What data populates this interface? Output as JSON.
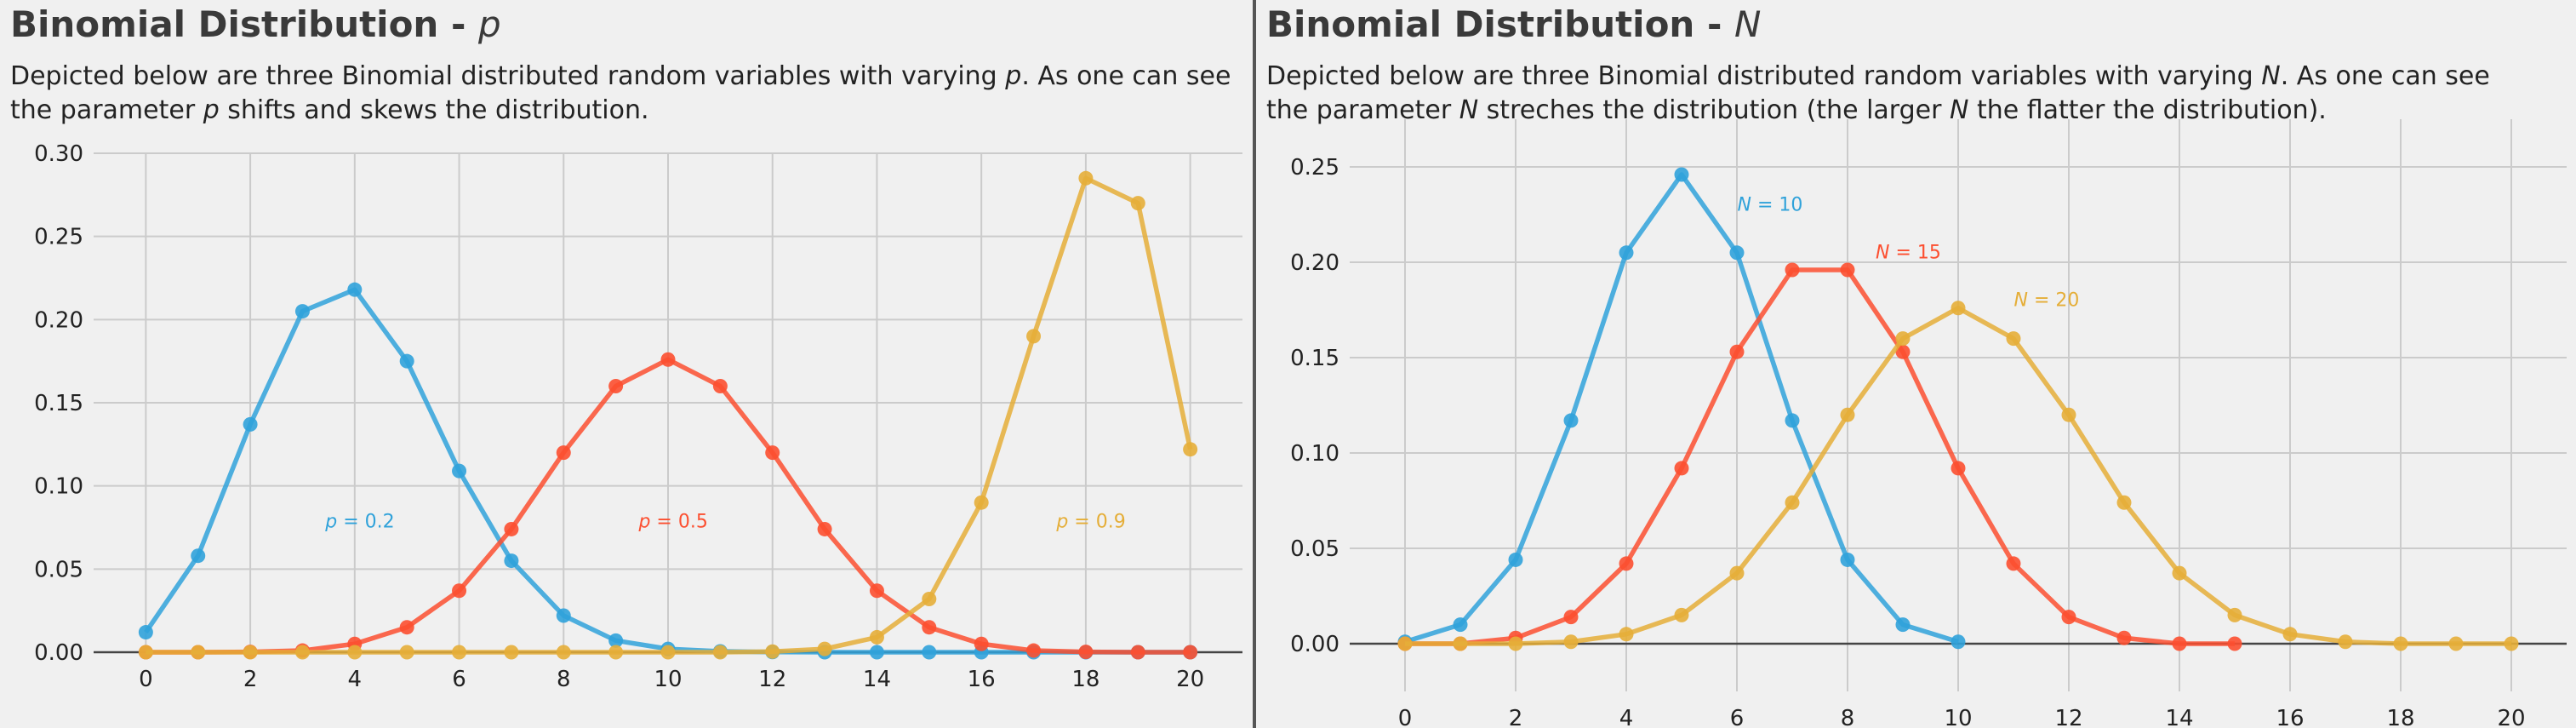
{
  "left": {
    "title_main": "Binomial Distribution - ",
    "title_var": "p",
    "desc": [
      [
        "Depicted below are three Binomial distributed random variables with varying ",
        false
      ],
      [
        "p",
        true
      ],
      [
        ". As one can see",
        false
      ],
      [
        "\nthe parameter ",
        false
      ],
      [
        "p",
        true
      ],
      [
        " shifts and skews the distribution.",
        false
      ]
    ]
  },
  "right": {
    "title_main": "Binomial Distribution - ",
    "title_var": "N",
    "desc": [
      [
        "Depicted below are three Binomial distributed random variables with varying ",
        false
      ],
      [
        "N",
        true
      ],
      [
        ". As one can see",
        false
      ],
      [
        "\nthe parameter ",
        false
      ],
      [
        "N",
        true
      ],
      [
        " streches the distribution (the larger ",
        false
      ],
      [
        "N",
        true
      ],
      [
        " the flatter the distribution).",
        false
      ]
    ]
  },
  "chart_data": [
    {
      "type": "line",
      "xlim": [
        -1,
        21
      ],
      "ylim": [
        0,
        0.3
      ],
      "xticks": [
        0,
        2,
        4,
        6,
        8,
        10,
        12,
        14,
        16,
        18,
        20
      ],
      "yticks": [
        0.0,
        0.05,
        0.1,
        0.15,
        0.2,
        0.25,
        0.3
      ],
      "ytick_labels": [
        "0.00",
        "0.05",
        "0.10",
        "0.15",
        "0.20",
        "0.25",
        "0.30"
      ],
      "grid": true,
      "series": [
        {
          "name": "p = 0.2",
          "color": "#30a2da",
          "x": [
            0,
            1,
            2,
            3,
            4,
            5,
            6,
            7,
            8,
            9,
            10,
            11,
            12,
            13,
            14,
            15,
            16,
            17,
            18,
            19,
            20
          ],
          "values": [
            0.012,
            0.058,
            0.137,
            0.205,
            0.218,
            0.175,
            0.109,
            0.055,
            0.022,
            0.007,
            0.002,
            0.0005,
            0.0001,
            0,
            0,
            0,
            0,
            0,
            0,
            0,
            0
          ],
          "label": {
            "prefix": "p",
            "text": " = 0.2",
            "x": 4.1,
            "y": 0.075
          }
        },
        {
          "name": "p = 0.5",
          "color": "#fc4f30",
          "x": [
            0,
            1,
            2,
            3,
            4,
            5,
            6,
            7,
            8,
            9,
            10,
            11,
            12,
            13,
            14,
            15,
            16,
            17,
            18,
            19,
            20
          ],
          "values": [
            0,
            0,
            0.0002,
            0.001,
            0.005,
            0.015,
            0.037,
            0.074,
            0.12,
            0.16,
            0.176,
            0.16,
            0.12,
            0.074,
            0.037,
            0.015,
            0.005,
            0.001,
            0.0002,
            0,
            0
          ],
          "label": {
            "prefix": "p",
            "text": " = 0.5",
            "x": 10.1,
            "y": 0.075
          }
        },
        {
          "name": "p = 0.9",
          "color": "#e5ae38",
          "x": [
            0,
            1,
            2,
            3,
            4,
            5,
            6,
            7,
            8,
            9,
            10,
            11,
            12,
            13,
            14,
            15,
            16,
            17,
            18,
            19,
            20
          ],
          "values": [
            0,
            0,
            0,
            0,
            0,
            0,
            0,
            0,
            0,
            0,
            0,
            0,
            0.0004,
            0.002,
            0.009,
            0.032,
            0.09,
            0.19,
            0.285,
            0.27,
            0.122
          ],
          "label": {
            "prefix": "p",
            "text": " = 0.9",
            "x": 18.1,
            "y": 0.075
          }
        }
      ]
    },
    {
      "type": "line",
      "xlim": [
        -1,
        21
      ],
      "ylim": [
        -0.025,
        0.275
      ],
      "xticks": [
        0,
        2,
        4,
        6,
        8,
        10,
        12,
        14,
        16,
        18,
        20
      ],
      "yticks": [
        0.0,
        0.05,
        0.1,
        0.15,
        0.2,
        0.25
      ],
      "ytick_labels": [
        "0.00",
        "0.05",
        "0.10",
        "0.15",
        "0.20",
        "0.25"
      ],
      "grid": true,
      "series": [
        {
          "name": "N = 10",
          "color": "#30a2da",
          "x": [
            0,
            1,
            2,
            3,
            4,
            5,
            6,
            7,
            8,
            9,
            10
          ],
          "values": [
            0.001,
            0.01,
            0.044,
            0.117,
            0.205,
            0.246,
            0.205,
            0.117,
            0.044,
            0.01,
            0.001
          ],
          "label": {
            "prefix": "N",
            "text": " = 10",
            "x": 6.6,
            "y": 0.227
          }
        },
        {
          "name": "N = 15",
          "color": "#fc4f30",
          "x": [
            0,
            1,
            2,
            3,
            4,
            5,
            6,
            7,
            8,
            9,
            10,
            11,
            12,
            13,
            14,
            15
          ],
          "values": [
            0,
            0,
            0.003,
            0.014,
            0.042,
            0.092,
            0.153,
            0.196,
            0.196,
            0.153,
            0.092,
            0.042,
            0.014,
            0.003,
            0,
            0
          ],
          "label": {
            "prefix": "N",
            "text": " = 15",
            "x": 9.1,
            "y": 0.202
          }
        },
        {
          "name": "N = 20",
          "color": "#e5ae38",
          "x": [
            0,
            1,
            2,
            3,
            4,
            5,
            6,
            7,
            8,
            9,
            10,
            11,
            12,
            13,
            14,
            15,
            16,
            17,
            18,
            19,
            20
          ],
          "values": [
            0,
            0,
            0,
            0.001,
            0.005,
            0.015,
            0.037,
            0.074,
            0.12,
            0.16,
            0.176,
            0.16,
            0.12,
            0.074,
            0.037,
            0.015,
            0.005,
            0.001,
            0,
            0,
            0
          ],
          "label": {
            "prefix": "N",
            "text": " = 20",
            "x": 11.6,
            "y": 0.177
          }
        }
      ]
    }
  ]
}
